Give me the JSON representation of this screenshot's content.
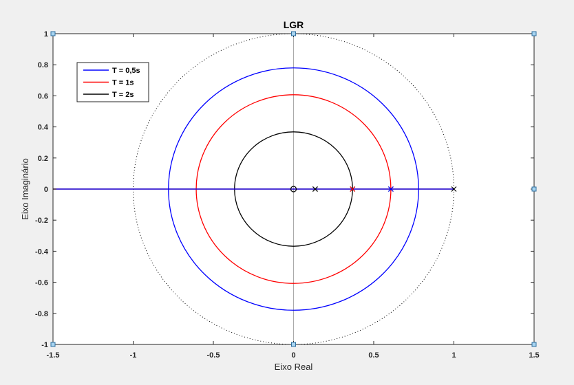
{
  "chart_data": {
    "type": "line",
    "title": "LGR",
    "xlabel": "Eixo Real",
    "ylabel": "Eixo Imaginário",
    "xlim": [
      -1.5,
      1.5
    ],
    "ylim": [
      -1,
      1
    ],
    "xticks": [
      -1.5,
      -1,
      -0.5,
      0,
      0.5,
      1,
      1.5
    ],
    "yticks": [
      -1,
      -0.8,
      -0.6,
      -0.4,
      -0.2,
      0,
      0.2,
      0.4,
      0.6,
      0.8,
      1
    ],
    "xtick_labels": [
      "-1.5",
      "-1",
      "-0.5",
      "0",
      "0.5",
      "1",
      "1.5"
    ],
    "ytick_labels": [
      "-1",
      "-0.8",
      "-0.6",
      "-0.4",
      "-0.2",
      "0",
      "0.2",
      "0.4",
      "0.6",
      "0.8",
      "1"
    ],
    "grid": false,
    "legend_position": "top-left",
    "unit_circle": {
      "radius": 1,
      "style": "dotted",
      "color": "#000000"
    },
    "series": [
      {
        "name": "T = 0,5s",
        "color": "#0000ff",
        "circle_radius": 0.78,
        "real_axis_segment": [
          -1.5,
          1
        ],
        "pole_marker_x": 0.607
      },
      {
        "name": "T = 1s",
        "color": "#ff0000",
        "circle_radius": 0.607,
        "real_axis_segment": [
          -1.5,
          1
        ],
        "pole_marker_x": 0.368
      },
      {
        "name": "T = 2s",
        "color": "#000000",
        "circle_radius": 0.368,
        "real_axis_segment": [
          -1.5,
          1
        ],
        "pole_marker_x": 0.135
      }
    ],
    "zeros": [
      {
        "x": 0,
        "y": 0
      }
    ],
    "poles_x": [
      0.135,
      0.368,
      0.607,
      1
    ],
    "corner_markers": [
      {
        "x": -1.5,
        "y": 1
      },
      {
        "x": 0,
        "y": 1
      },
      {
        "x": 1.5,
        "y": 1
      },
      {
        "x": 1.5,
        "y": 0
      },
      {
        "x": 1.5,
        "y": -1
      },
      {
        "x": 0,
        "y": -1
      },
      {
        "x": -1.5,
        "y": -1
      }
    ]
  }
}
